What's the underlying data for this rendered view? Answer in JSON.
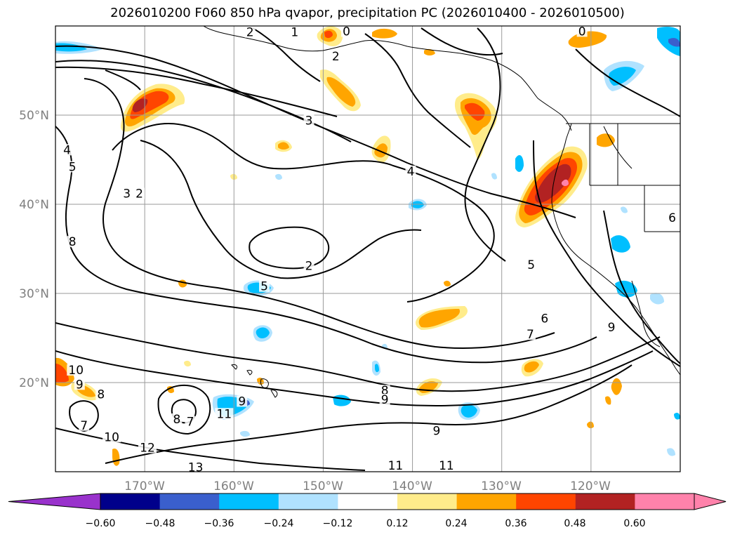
{
  "title": "2026010200 F060 850 hPa qvapor, precipitation PC (2026010400 - 2026010500)",
  "map": {
    "lon_labels": [
      "170°W",
      "160°W",
      "150°W",
      "140°W",
      "130°W",
      "120°W"
    ],
    "lat_labels": [
      "50°N",
      "40°N",
      "30°N",
      "20°N"
    ],
    "extent": {
      "lon": [
        -180,
        -110
      ],
      "lat": [
        10,
        60
      ]
    }
  },
  "contour_labels": [
    {
      "text": "0",
      "lon": -147.4,
      "lat": 59.1
    },
    {
      "text": "0",
      "lon": -121.0,
      "lat": 59.1
    },
    {
      "text": "1",
      "lon": -153.2,
      "lat": 59.0
    },
    {
      "text": "2",
      "lon": -158.2,
      "lat": 59.0
    },
    {
      "text": "2",
      "lon": -148.6,
      "lat": 56.3
    },
    {
      "text": "3",
      "lon": -151.6,
      "lat": 49.1
    },
    {
      "text": "4",
      "lon": -178.7,
      "lat": 45.8
    },
    {
      "text": "5",
      "lon": -178.1,
      "lat": 43.9
    },
    {
      "text": "4",
      "lon": -140.2,
      "lat": 43.4
    },
    {
      "text": "3",
      "lon": -172.0,
      "lat": 40.9
    },
    {
      "text": "2",
      "lon": -170.6,
      "lat": 40.9
    },
    {
      "text": "8",
      "lon": -178.1,
      "lat": 35.5
    },
    {
      "text": "2",
      "lon": -151.6,
      "lat": 32.8
    },
    {
      "text": "5",
      "lon": -126.7,
      "lat": 32.9
    },
    {
      "text": "5",
      "lon": -156.6,
      "lat": 30.5
    },
    {
      "text": "6",
      "lon": -125.2,
      "lat": 26.9
    },
    {
      "text": "7",
      "lon": -126.8,
      "lat": 25.1
    },
    {
      "text": "9",
      "lon": -117.7,
      "lat": 25.9
    },
    {
      "text": "10",
      "lon": -177.7,
      "lat": 21.1
    },
    {
      "text": "9",
      "lon": -177.3,
      "lat": 19.5
    },
    {
      "text": "8",
      "lon": -174.9,
      "lat": 18.4
    },
    {
      "text": "9",
      "lon": -159.1,
      "lat": 17.6
    },
    {
      "text": "8",
      "lon": -143.1,
      "lat": 18.8
    },
    {
      "text": "9",
      "lon": -143.1,
      "lat": 17.8
    },
    {
      "text": "11",
      "lon": -161.1,
      "lat": 16.2
    },
    {
      "text": "8",
      "lon": -166.4,
      "lat": 15.6
    },
    {
      "text": "7",
      "lon": -164.9,
      "lat": 15.3
    },
    {
      "text": "7",
      "lon": -176.8,
      "lat": 14.9
    },
    {
      "text": "9",
      "lon": -137.3,
      "lat": 14.3
    },
    {
      "text": "10",
      "lon": -173.7,
      "lat": 13.6
    },
    {
      "text": "12",
      "lon": -169.7,
      "lat": 12.4
    },
    {
      "text": "13",
      "lon": -164.3,
      "lat": 10.2
    },
    {
      "text": "11",
      "lon": -141.9,
      "lat": 10.4
    },
    {
      "text": "11",
      "lon": -136.2,
      "lat": 10.4
    },
    {
      "text": "6",
      "lon": -110.9,
      "lat": 38.2
    }
  ],
  "colorbar": {
    "tick_labels": [
      "−0.60",
      "−0.48",
      "−0.36",
      "−0.24",
      "−0.12",
      "0.12",
      "0.24",
      "0.36",
      "0.48",
      "0.60"
    ],
    "colors": [
      "#9932cc",
      "#00008b",
      "#3a5fcd",
      "#00bfff",
      "#b0e2ff",
      "#ffffff",
      "#ffec8b",
      "#ffa500",
      "#ff4500",
      "#b22222",
      "#ff82ab",
      "#9932cc",
      "#ff82ab"
    ]
  },
  "colors": {
    "grid": "#9a9a9a",
    "tick_text": "#7f7f7f",
    "contour": "#000000"
  }
}
